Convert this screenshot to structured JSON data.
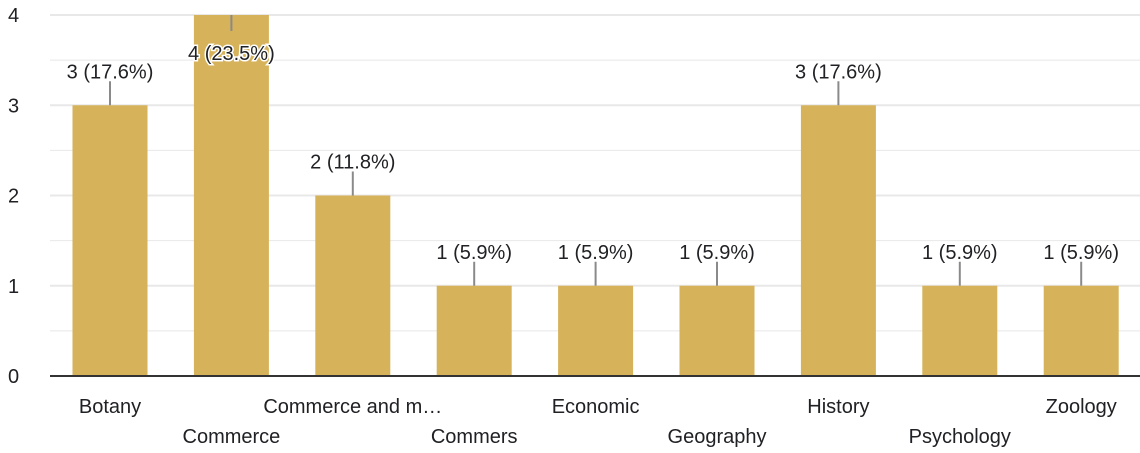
{
  "chart_data": {
    "type": "bar",
    "categories": [
      "Botany",
      "Commerce",
      "Commerce and m…",
      "Commers",
      "Economic",
      "Geography",
      "History",
      "Psychology",
      "Zoology"
    ],
    "values": [
      3,
      4,
      2,
      1,
      1,
      1,
      3,
      1,
      1
    ],
    "data_labels": [
      "3 (17.6%)",
      "4 (23.5%)",
      "2 (11.8%)",
      "1 (5.9%)",
      "1 (5.9%)",
      "1 (5.9%)",
      "3 (17.6%)",
      "1 (5.9%)",
      "1 (5.9%)"
    ],
    "y_ticks": [
      "0",
      "1",
      "2",
      "3",
      "4"
    ],
    "ylim": [
      0,
      4
    ],
    "grid": true,
    "legend": "none",
    "colors": {
      "bar": "#d6b25a",
      "grid": "#e8e8e8",
      "axis": "#333333",
      "leader": "#8a8a8a"
    }
  }
}
